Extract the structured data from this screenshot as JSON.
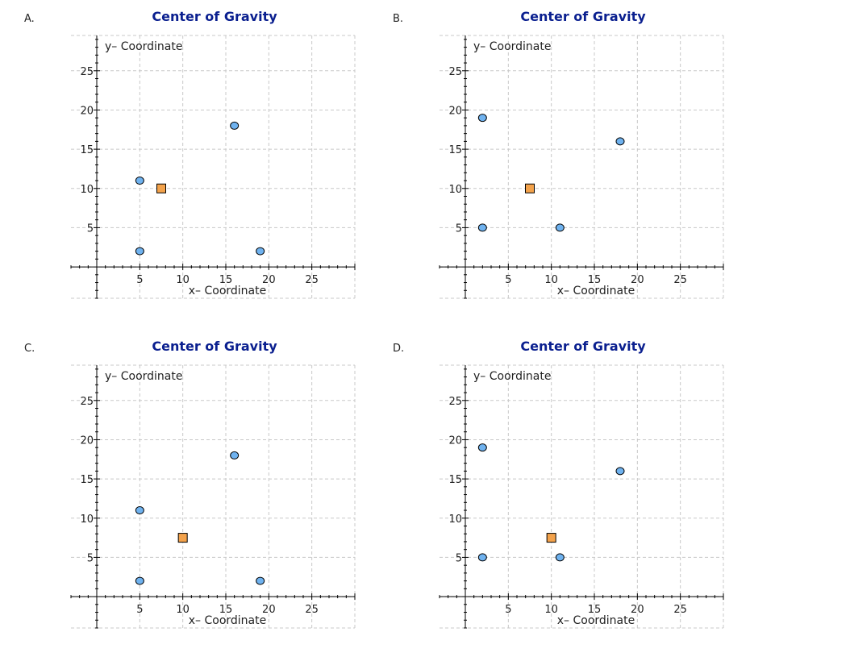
{
  "panels": [
    {
      "label": "A."
    },
    {
      "label": "B."
    },
    {
      "label": "C."
    },
    {
      "label": "D."
    }
  ],
  "colors": {
    "title": "#0a1f8f",
    "point_fill": "#6fb2ef",
    "center_fill": "#f3a24b",
    "grid": "#c8c8c8",
    "axis": "#000000",
    "text": "#222222"
  },
  "chart_data": [
    {
      "type": "scatter",
      "title": "Center of Gravity",
      "xlabel": "x– Coordinate",
      "ylabel": "y– Coordinate",
      "xlim": [
        -3,
        30
      ],
      "ylim": [
        -4,
        29.5
      ],
      "grid": true,
      "x_ticks": [
        5,
        10,
        15,
        20,
        25
      ],
      "y_ticks": [
        5,
        10,
        15,
        20,
        25
      ],
      "series": [
        {
          "name": "points",
          "marker": "circle",
          "x": [
            5,
            5,
            16,
            19
          ],
          "y": [
            11,
            2,
            18,
            2
          ]
        },
        {
          "name": "center",
          "marker": "square",
          "x": [
            7.5
          ],
          "y": [
            10
          ]
        }
      ]
    },
    {
      "type": "scatter",
      "title": "Center of Gravity",
      "xlabel": "x– Coordinate",
      "ylabel": "y– Coordinate",
      "xlim": [
        -3,
        30
      ],
      "ylim": [
        -4,
        29.5
      ],
      "grid": true,
      "x_ticks": [
        5,
        10,
        15,
        20,
        25
      ],
      "y_ticks": [
        5,
        10,
        15,
        20,
        25
      ],
      "series": [
        {
          "name": "points",
          "marker": "circle",
          "x": [
            2,
            2,
            18,
            11
          ],
          "y": [
            19,
            5,
            16,
            5
          ]
        },
        {
          "name": "center",
          "marker": "square",
          "x": [
            7.5
          ],
          "y": [
            10
          ]
        }
      ]
    },
    {
      "type": "scatter",
      "title": "Center of Gravity",
      "xlabel": "x– Coordinate",
      "ylabel": "y– Coordinate",
      "xlim": [
        -3,
        30
      ],
      "ylim": [
        -4,
        29.5
      ],
      "grid": true,
      "x_ticks": [
        5,
        10,
        15,
        20,
        25
      ],
      "y_ticks": [
        5,
        10,
        15,
        20,
        25
      ],
      "series": [
        {
          "name": "points",
          "marker": "circle",
          "x": [
            5,
            5,
            16,
            19
          ],
          "y": [
            11,
            2,
            18,
            2
          ]
        },
        {
          "name": "center",
          "marker": "square",
          "x": [
            10
          ],
          "y": [
            7.5
          ]
        }
      ]
    },
    {
      "type": "scatter",
      "title": "Center of Gravity",
      "xlabel": "x– Coordinate",
      "ylabel": "y– Coordinate",
      "xlim": [
        -3,
        30
      ],
      "ylim": [
        -4,
        29.5
      ],
      "grid": true,
      "x_ticks": [
        5,
        10,
        15,
        20,
        25
      ],
      "y_ticks": [
        5,
        10,
        15,
        20,
        25
      ],
      "series": [
        {
          "name": "points",
          "marker": "circle",
          "x": [
            2,
            2,
            18,
            11
          ],
          "y": [
            19,
            5,
            16,
            5
          ]
        },
        {
          "name": "center",
          "marker": "square",
          "x": [
            10
          ],
          "y": [
            7.5
          ]
        }
      ]
    }
  ]
}
